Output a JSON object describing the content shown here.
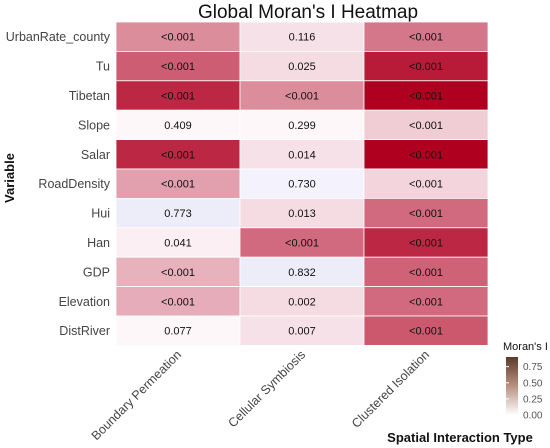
{
  "chart_data": {
    "type": "heatmap",
    "title": "Global Moran's I Heatmap",
    "xlabel": "Spatial Interaction Type",
    "ylabel": "Variable",
    "columns": [
      "Boundary Permeation",
      "Cellular Symbiosis",
      "Clustered Isolation"
    ],
    "rows": [
      "UrbanRate_county",
      "Tu",
      "Tibetan",
      "Slope",
      "Salar",
      "RoadDensity",
      "Hui",
      "Han",
      "GDP",
      "Elevation",
      "DistRiver"
    ],
    "values": [
      [
        0.42,
        0.1,
        0.5
      ],
      [
        0.6,
        0.12,
        0.85
      ],
      [
        0.8,
        0.42,
        0.95
      ],
      [
        0.02,
        0.02,
        0.18
      ],
      [
        0.8,
        0.1,
        0.95
      ],
      [
        0.35,
        -0.05,
        0.15
      ],
      [
        -0.08,
        0.12,
        0.55
      ],
      [
        0.05,
        0.55,
        0.8
      ],
      [
        0.28,
        -0.08,
        0.58
      ],
      [
        0.3,
        0.12,
        0.55
      ],
      [
        0.02,
        0.1,
        0.62
      ]
    ],
    "labels": [
      [
        "<0.001",
        "0.116",
        "<0.001"
      ],
      [
        "<0.001",
        "0.025",
        "<0.001"
      ],
      [
        "<0.001",
        "<0.001",
        "<0.001"
      ],
      [
        "0.409",
        "0.299",
        "<0.001"
      ],
      [
        "<0.001",
        "0.014",
        "<0.001"
      ],
      [
        "<0.001",
        "0.730",
        "<0.001"
      ],
      [
        "0.773",
        "0.013",
        "<0.001"
      ],
      [
        "0.041",
        "<0.001",
        "<0.001"
      ],
      [
        "<0.001",
        "0.832",
        "<0.001"
      ],
      [
        "<0.001",
        "0.002",
        "<0.001"
      ],
      [
        "0.077",
        "0.007",
        "<0.001"
      ]
    ],
    "legend": {
      "title": "Moran's I",
      "ticks": [
        0.75,
        0.5,
        0.25,
        0.0
      ],
      "tick_labels": [
        "0.75",
        "0.50",
        "0.25",
        "0.00"
      ],
      "range": [
        0.0,
        0.9
      ],
      "colors": [
        "#ffffff",
        "#5d3a2a"
      ]
    },
    "colors": {
      "low": "#e8e8f8",
      "zero": "#fffcff",
      "high": "#b00020"
    },
    "grid": false
  }
}
